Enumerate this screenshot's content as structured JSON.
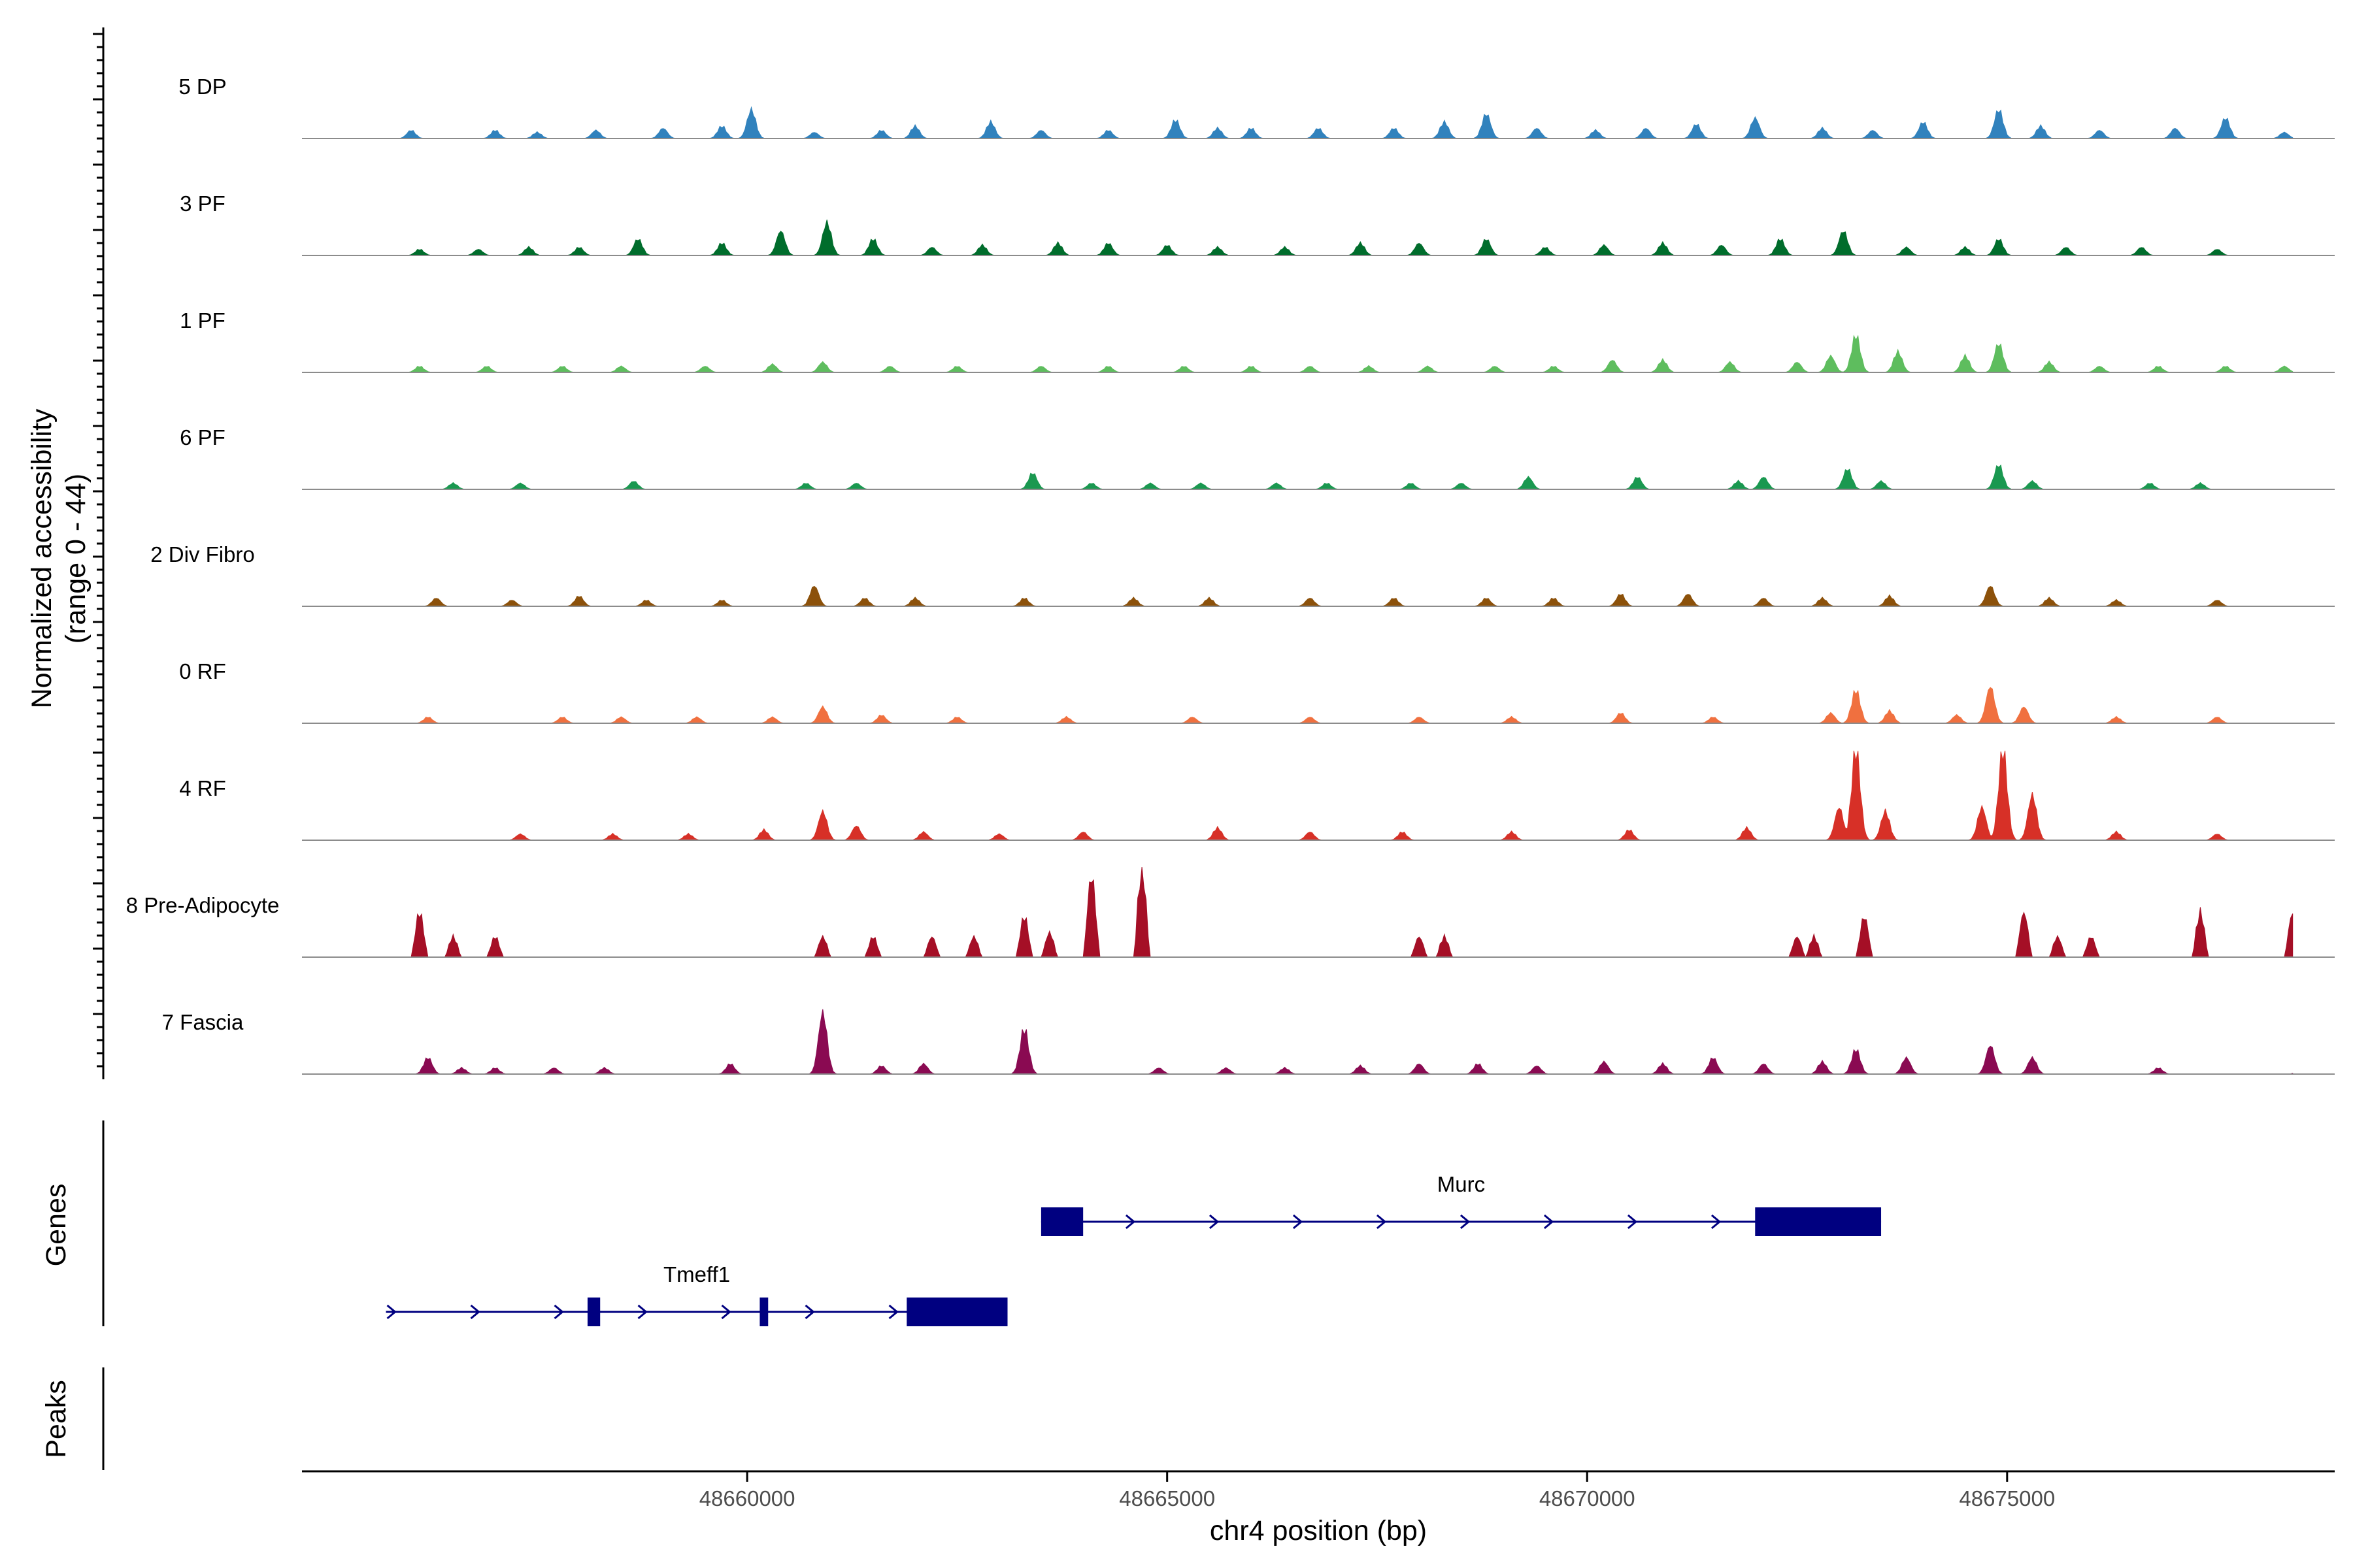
{
  "chart_data": {
    "type": "area",
    "title": "",
    "ylabel": "Normalized accessibility",
    "ylabel_range": "(range 0 - 44)",
    "y_range": [
      0,
      44
    ],
    "xlabel": "chr4 position (bp)",
    "xlim": [
      48654700,
      48678900
    ],
    "x_ticks": [
      48660000,
      48665000,
      48670000,
      48675000
    ],
    "x_tick_labels": [
      "48660000",
      "48665000",
      "48670000",
      "48675000"
    ],
    "tracks": [
      {
        "name": "5 DP",
        "color": "#3182bd",
        "peaks": [
          [
            48656000,
            4
          ],
          [
            48657000,
            4
          ],
          [
            48657500,
            3
          ],
          [
            48658200,
            4
          ],
          [
            48659000,
            5
          ],
          [
            48659700,
            6
          ],
          [
            48660050,
            14
          ],
          [
            48660800,
            3
          ],
          [
            48661600,
            4
          ],
          [
            48662000,
            6
          ],
          [
            48662900,
            8
          ],
          [
            48663500,
            4
          ],
          [
            48664300,
            4
          ],
          [
            48665100,
            9
          ],
          [
            48665600,
            5
          ],
          [
            48666000,
            5
          ],
          [
            48666800,
            5
          ],
          [
            48667700,
            5
          ],
          [
            48668300,
            8
          ],
          [
            48668800,
            12
          ],
          [
            48669400,
            5
          ],
          [
            48670100,
            4
          ],
          [
            48670700,
            5
          ],
          [
            48671300,
            7
          ],
          [
            48672000,
            10
          ],
          [
            48672800,
            5
          ],
          [
            48673400,
            4
          ],
          [
            48674000,
            8
          ],
          [
            48674900,
            14
          ],
          [
            48675400,
            6
          ],
          [
            48676100,
            4
          ],
          [
            48677000,
            5
          ],
          [
            48677600,
            10
          ],
          [
            48678300,
            3
          ]
        ]
      },
      {
        "name": "3 PF",
        "color": "#006d2c",
        "peaks": [
          [
            48656100,
            3
          ],
          [
            48656800,
            3
          ],
          [
            48657400,
            4
          ],
          [
            48658000,
            4
          ],
          [
            48658700,
            8
          ],
          [
            48659700,
            6
          ],
          [
            48660400,
            12
          ],
          [
            48660950,
            16
          ],
          [
            48661500,
            8
          ],
          [
            48662200,
            4
          ],
          [
            48662800,
            5
          ],
          [
            48663700,
            6
          ],
          [
            48664300,
            6
          ],
          [
            48665000,
            5
          ],
          [
            48665600,
            4
          ],
          [
            48666400,
            4
          ],
          [
            48667300,
            6
          ],
          [
            48668000,
            6
          ],
          [
            48668800,
            8
          ],
          [
            48669500,
            4
          ],
          [
            48670200,
            5
          ],
          [
            48670900,
            6
          ],
          [
            48671600,
            5
          ],
          [
            48672300,
            8
          ],
          [
            48673050,
            12
          ],
          [
            48673800,
            4
          ],
          [
            48674500,
            4
          ],
          [
            48674900,
            8
          ],
          [
            48675700,
            4
          ],
          [
            48676600,
            4
          ],
          [
            48677500,
            3
          ]
        ]
      },
      {
        "name": "1 PF",
        "color": "#5ebd5e",
        "peaks": [
          [
            48656100,
            3
          ],
          [
            48656900,
            3
          ],
          [
            48657800,
            3
          ],
          [
            48658500,
            3
          ],
          [
            48659500,
            3
          ],
          [
            48660300,
            4
          ],
          [
            48660900,
            5
          ],
          [
            48661700,
            3
          ],
          [
            48662500,
            3
          ],
          [
            48663500,
            3
          ],
          [
            48664300,
            3
          ],
          [
            48665200,
            3
          ],
          [
            48666000,
            3
          ],
          [
            48666700,
            3
          ],
          [
            48667400,
            3
          ],
          [
            48668100,
            3
          ],
          [
            48668900,
            3
          ],
          [
            48669600,
            3
          ],
          [
            48670300,
            6
          ],
          [
            48670900,
            6
          ],
          [
            48671700,
            5
          ],
          [
            48672500,
            5
          ],
          [
            48672900,
            8
          ],
          [
            48673200,
            18
          ],
          [
            48673700,
            10
          ],
          [
            48674500,
            8
          ],
          [
            48674900,
            14
          ],
          [
            48675500,
            5
          ],
          [
            48676100,
            3
          ],
          [
            48676800,
            3
          ],
          [
            48677600,
            3
          ],
          [
            48678300,
            3
          ]
        ]
      },
      {
        "name": "6 PF",
        "color": "#1a9850",
        "peaks": [
          [
            48656500,
            3
          ],
          [
            48657300,
            3
          ],
          [
            48658650,
            4
          ],
          [
            48660700,
            3
          ],
          [
            48661300,
            3
          ],
          [
            48663400,
            8
          ],
          [
            48664100,
            3
          ],
          [
            48664800,
            3
          ],
          [
            48665400,
            3
          ],
          [
            48666300,
            3
          ],
          [
            48666900,
            3
          ],
          [
            48667900,
            3
          ],
          [
            48668500,
            3
          ],
          [
            48669300,
            6
          ],
          [
            48670600,
            6
          ],
          [
            48671800,
            4
          ],
          [
            48672100,
            6
          ],
          [
            48673100,
            10
          ],
          [
            48673500,
            4
          ],
          [
            48674900,
            12
          ],
          [
            48675300,
            4
          ],
          [
            48676700,
            3
          ],
          [
            48677300,
            3
          ]
        ]
      },
      {
        "name": "2 Div Fibro",
        "color": "#8c510a",
        "peaks": [
          [
            48656300,
            4
          ],
          [
            48657200,
            3
          ],
          [
            48658000,
            5
          ],
          [
            48658800,
            3
          ],
          [
            48659700,
            3
          ],
          [
            48660800,
            10
          ],
          [
            48661400,
            4
          ],
          [
            48662000,
            4
          ],
          [
            48663300,
            4
          ],
          [
            48664600,
            4
          ],
          [
            48665500,
            4
          ],
          [
            48666700,
            4
          ],
          [
            48667700,
            4
          ],
          [
            48668800,
            4
          ],
          [
            48669600,
            4
          ],
          [
            48670400,
            6
          ],
          [
            48671200,
            6
          ],
          [
            48672100,
            4
          ],
          [
            48672800,
            4
          ],
          [
            48673600,
            5
          ],
          [
            48674800,
            10
          ],
          [
            48675500,
            4
          ],
          [
            48676300,
            3
          ],
          [
            48677500,
            3
          ]
        ]
      },
      {
        "name": "0 RF",
        "color": "#f0703f",
        "peaks": [
          [
            48656200,
            3
          ],
          [
            48657800,
            3
          ],
          [
            48658500,
            3
          ],
          [
            48659400,
            3
          ],
          [
            48660300,
            3
          ],
          [
            48660900,
            8
          ],
          [
            48661600,
            4
          ],
          [
            48662500,
            3
          ],
          [
            48663800,
            3
          ],
          [
            48665300,
            3
          ],
          [
            48666700,
            3
          ],
          [
            48668000,
            3
          ],
          [
            48669100,
            3
          ],
          [
            48670400,
            5
          ],
          [
            48671500,
            3
          ],
          [
            48672900,
            5
          ],
          [
            48673200,
            16
          ],
          [
            48673600,
            6
          ],
          [
            48674400,
            4
          ],
          [
            48674800,
            18
          ],
          [
            48675200,
            8
          ],
          [
            48676300,
            3
          ],
          [
            48677500,
            3
          ]
        ]
      },
      {
        "name": "4 RF",
        "color": "#d73027",
        "peaks": [
          [
            48657300,
            3
          ],
          [
            48658400,
            3
          ],
          [
            48659300,
            3
          ],
          [
            48660200,
            5
          ],
          [
            48660900,
            14
          ],
          [
            48661300,
            7
          ],
          [
            48662100,
            4
          ],
          [
            48663000,
            3
          ],
          [
            48664000,
            4
          ],
          [
            48665600,
            6
          ],
          [
            48666700,
            4
          ],
          [
            48667800,
            4
          ],
          [
            48669100,
            4
          ],
          [
            48670500,
            5
          ],
          [
            48671900,
            6
          ],
          [
            48673000,
            16
          ],
          [
            48673200,
            44
          ],
          [
            48673550,
            14
          ],
          [
            48674700,
            16
          ],
          [
            48674950,
            44
          ],
          [
            48675300,
            22
          ],
          [
            48676300,
            4
          ],
          [
            48677500,
            3
          ]
        ]
      },
      {
        "name": "8 Pre-Adipocyte",
        "color": "#a50f26",
        "peaks": [
          [
            48656100,
            22
          ],
          [
            48656500,
            10
          ],
          [
            48657000,
            10
          ],
          [
            48660900,
            10
          ],
          [
            48661500,
            10
          ],
          [
            48662200,
            10
          ],
          [
            48662700,
            10
          ],
          [
            48663300,
            20
          ],
          [
            48663600,
            12
          ],
          [
            48664100,
            40
          ],
          [
            48664700,
            44
          ],
          [
            48668000,
            10
          ],
          [
            48668300,
            10
          ],
          [
            48672500,
            10
          ],
          [
            48672700,
            10
          ],
          [
            48673300,
            20
          ],
          [
            48675200,
            22
          ],
          [
            48675600,
            10
          ],
          [
            48676000,
            10
          ],
          [
            48677300,
            22
          ],
          [
            48678400,
            22
          ]
        ]
      },
      {
        "name": "7 Fascia",
        "color": "#8a0a52",
        "peaks": [
          [
            48656200,
            8
          ],
          [
            48656600,
            3
          ],
          [
            48657000,
            3
          ],
          [
            48657700,
            3
          ],
          [
            48658300,
            3
          ],
          [
            48659800,
            5
          ],
          [
            48660900,
            30
          ],
          [
            48661600,
            4
          ],
          [
            48662100,
            5
          ],
          [
            48663300,
            22
          ],
          [
            48664900,
            3
          ],
          [
            48665700,
            3
          ],
          [
            48666400,
            3
          ],
          [
            48667300,
            4
          ],
          [
            48668000,
            5
          ],
          [
            48668700,
            5
          ],
          [
            48669400,
            4
          ],
          [
            48670200,
            6
          ],
          [
            48670900,
            5
          ],
          [
            48671500,
            8
          ],
          [
            48672100,
            5
          ],
          [
            48672800,
            6
          ],
          [
            48673200,
            12
          ],
          [
            48673800,
            8
          ],
          [
            48674800,
            14
          ],
          [
            48675300,
            8
          ],
          [
            48676800,
            3
          ],
          [
            48678500,
            3
          ]
        ]
      }
    ],
    "genes_label": "Genes",
    "peaks_label": "Peaks",
    "genes": [
      {
        "name": "Murc",
        "start": 48663500,
        "end": 48673500,
        "exons": [
          [
            48663500,
            48664000
          ],
          [
            48672000,
            48673500
          ]
        ]
      },
      {
        "name": "Tmeff1",
        "start": 48655700,
        "end": 48663100,
        "exons": [
          [
            48658100,
            48658250
          ],
          [
            48660150,
            48660250
          ],
          [
            48661900,
            48663100
          ]
        ]
      }
    ]
  }
}
